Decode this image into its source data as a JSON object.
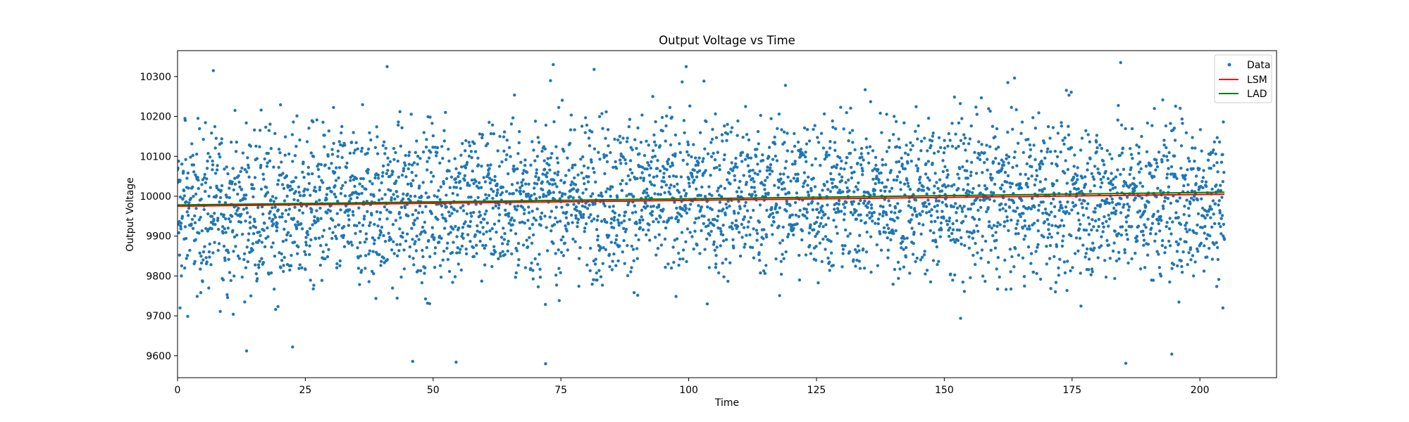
{
  "chart_data": {
    "type": "scatter",
    "title": "Output Voltage vs Time",
    "xlabel": "Time",
    "ylabel": "Output Voltage",
    "xlim": [
      0,
      215
    ],
    "ylim": [
      9545,
      10365
    ],
    "xticks": [
      0,
      25,
      50,
      75,
      100,
      125,
      150,
      175,
      200
    ],
    "yticks": [
      9600,
      9700,
      9800,
      9900,
      10000,
      10100,
      10200,
      10300
    ],
    "grid": false,
    "legend_position": "top-right",
    "colors": {
      "data": "#1f77b4",
      "lsm": "#ff0000",
      "lad": "#008000"
    },
    "series": [
      {
        "name": "Data",
        "kind": "scatter",
        "x_range": [
          0,
          204.8
        ],
        "center": 9990,
        "spread": 120,
        "marker_size": 2.2,
        "points_shown": 4096,
        "sample_points": [
          [
            0.5,
            9720
          ],
          [
            1.5,
            10190
          ],
          [
            7,
            10315
          ],
          [
            13.5,
            9612
          ],
          [
            22.5,
            9622
          ],
          [
            41,
            10325
          ],
          [
            46,
            9586
          ],
          [
            54.5,
            9584
          ],
          [
            72,
            9580
          ],
          [
            73.5,
            10330
          ],
          [
            81.5,
            10318
          ],
          [
            99.5,
            10325
          ],
          [
            184.5,
            10335
          ],
          [
            185.5,
            9581
          ],
          [
            194.5,
            9604
          ],
          [
            204.5,
            9720
          ]
        ]
      },
      {
        "name": "LSM",
        "kind": "line",
        "x": [
          0,
          204.8
        ],
        "y": [
          9975,
          10005
        ]
      },
      {
        "name": "LAD",
        "kind": "line",
        "x": [
          0,
          204.8
        ],
        "y": [
          9978,
          10010
        ]
      }
    ]
  }
}
